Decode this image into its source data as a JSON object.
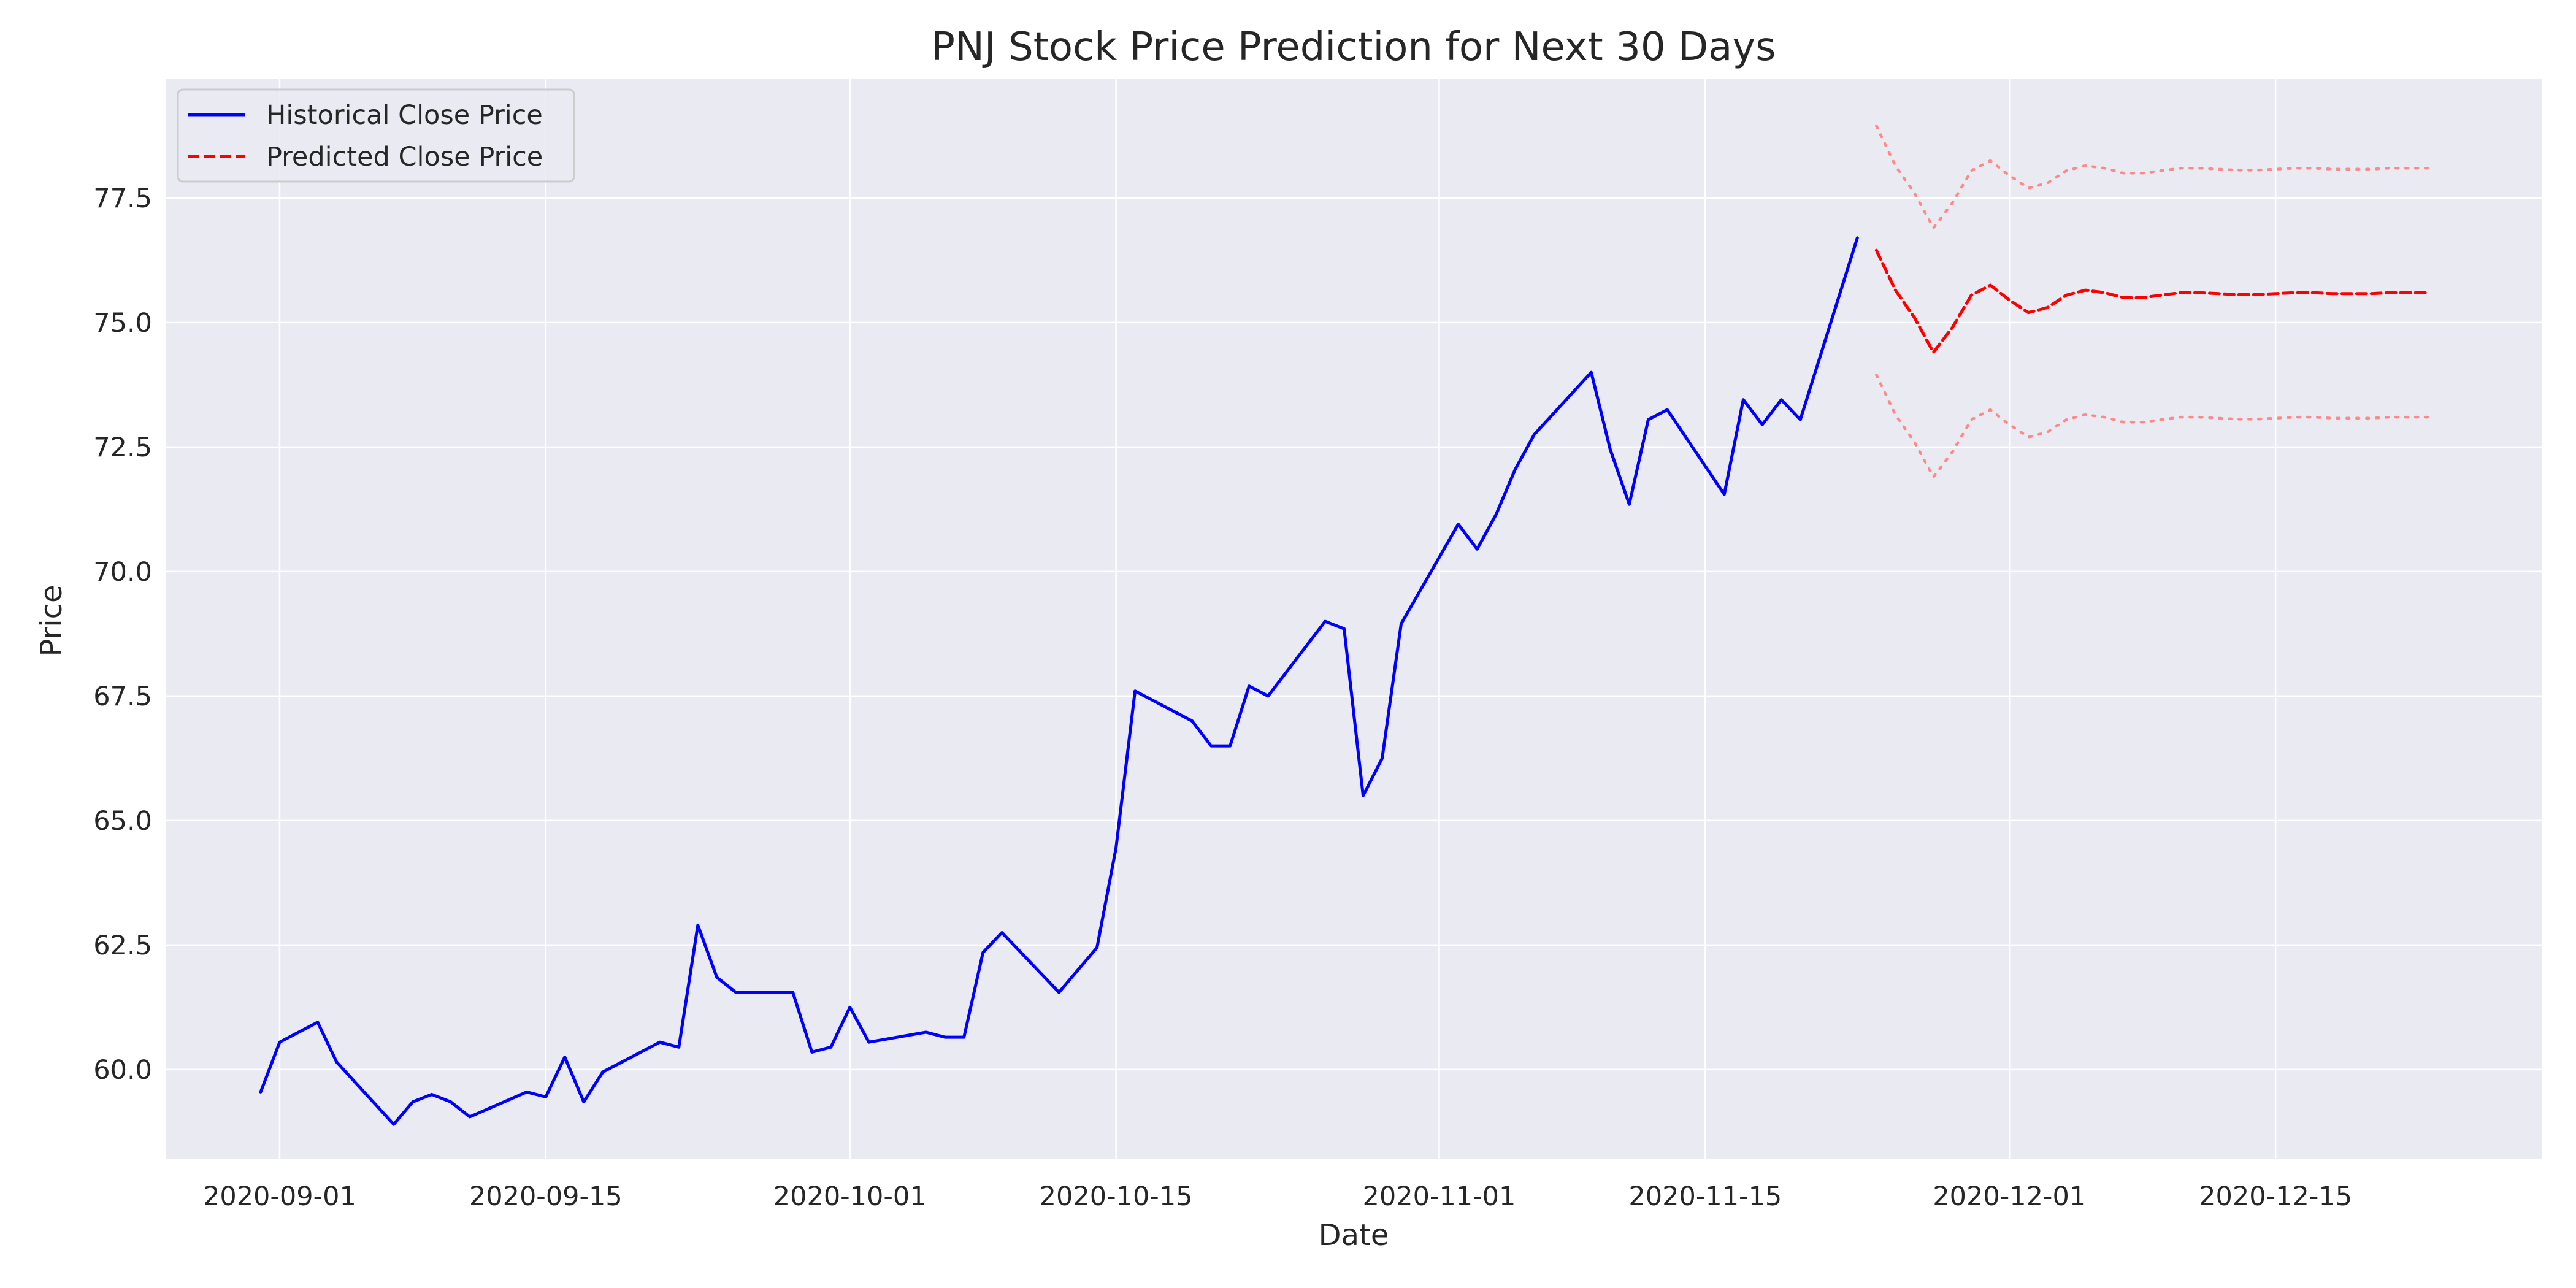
{
  "chart_data": {
    "type": "line",
    "title": "PNJ Stock Price Prediction for Next 30 Days",
    "xlabel": "Date",
    "ylabel": "Price",
    "xlim": [
      "2020-08-26",
      "2020-12-29"
    ],
    "ylim": [
      58.2,
      79.9
    ],
    "x_ticks": [
      "2020-09-01",
      "2020-09-15",
      "2020-10-01",
      "2020-10-15",
      "2020-11-01",
      "2020-11-15",
      "2020-12-01",
      "2020-12-15"
    ],
    "y_ticks": [
      "60.0",
      "62.5",
      "65.0",
      "67.5",
      "70.0",
      "72.5",
      "75.0",
      "77.5"
    ],
    "grid": true,
    "legend_position": "top-left",
    "colors": {
      "plot_background": "#eaeaf2",
      "historical": "#0000ff",
      "predicted": "#ff0000",
      "bounds": "#ff8080"
    },
    "series": [
      {
        "name": "Historical Close Price",
        "style": "solid",
        "x": [
          "2020-08-31",
          "2020-09-01",
          "2020-09-03",
          "2020-09-04",
          "2020-09-07",
          "2020-09-08",
          "2020-09-09",
          "2020-09-10",
          "2020-09-11",
          "2020-09-14",
          "2020-09-15",
          "2020-09-16",
          "2020-09-17",
          "2020-09-18",
          "2020-09-21",
          "2020-09-22",
          "2020-09-23",
          "2020-09-24",
          "2020-09-25",
          "2020-09-28",
          "2020-09-29",
          "2020-09-30",
          "2020-10-01",
          "2020-10-02",
          "2020-10-05",
          "2020-10-06",
          "2020-10-07",
          "2020-10-08",
          "2020-10-09",
          "2020-10-12",
          "2020-10-13",
          "2020-10-14",
          "2020-10-15",
          "2020-10-16",
          "2020-10-19",
          "2020-10-20",
          "2020-10-21",
          "2020-10-22",
          "2020-10-23",
          "2020-10-26",
          "2020-10-27",
          "2020-10-28",
          "2020-10-29",
          "2020-10-30",
          "2020-11-02",
          "2020-11-03",
          "2020-11-04",
          "2020-11-05",
          "2020-11-06",
          "2020-11-09",
          "2020-11-10",
          "2020-11-11",
          "2020-11-12",
          "2020-11-13",
          "2020-11-16",
          "2020-11-17",
          "2020-11-18",
          "2020-11-19",
          "2020-11-20",
          "2020-11-23"
        ],
        "y": [
          59.55,
          60.55,
          60.95,
          60.15,
          58.9,
          59.35,
          59.5,
          59.35,
          59.05,
          59.55,
          59.45,
          60.25,
          59.35,
          59.95,
          60.55,
          60.45,
          62.9,
          61.85,
          61.55,
          61.55,
          60.35,
          60.45,
          61.25,
          60.55,
          60.75,
          60.65,
          60.65,
          62.35,
          62.75,
          61.55,
          62.0,
          62.45,
          64.45,
          67.6,
          67.0,
          66.5,
          66.5,
          67.7,
          67.5,
          69.0,
          68.85,
          65.5,
          66.25,
          68.95,
          70.95,
          70.45,
          71.15,
          72.05,
          72.75,
          74.0,
          72.45,
          71.35,
          73.05,
          73.25,
          71.55,
          73.45,
          72.95,
          73.45,
          73.05,
          76.7
        ]
      },
      {
        "name": "Predicted Close Price",
        "style": "dashed",
        "x": [
          "2020-11-24",
          "2020-11-25",
          "2020-11-26",
          "2020-11-27",
          "2020-11-28",
          "2020-11-29",
          "2020-11-30",
          "2020-12-01",
          "2020-12-02",
          "2020-12-03",
          "2020-12-04",
          "2020-12-05",
          "2020-12-06",
          "2020-12-07",
          "2020-12-08",
          "2020-12-09",
          "2020-12-10",
          "2020-12-11",
          "2020-12-12",
          "2020-12-13",
          "2020-12-14",
          "2020-12-15",
          "2020-12-16",
          "2020-12-17",
          "2020-12-18",
          "2020-12-19",
          "2020-12-20",
          "2020-12-21",
          "2020-12-22",
          "2020-12-23"
        ],
        "y": [
          76.45,
          75.65,
          75.1,
          74.4,
          74.9,
          75.55,
          75.75,
          75.45,
          75.2,
          75.3,
          75.55,
          75.65,
          75.6,
          75.5,
          75.5,
          75.55,
          75.6,
          75.6,
          75.58,
          75.56,
          75.56,
          75.58,
          75.6,
          75.6,
          75.58,
          75.58,
          75.58,
          75.6,
          75.6,
          75.6
        ]
      },
      {
        "style": "dotted",
        "x": [
          "2020-11-24",
          "2020-11-25",
          "2020-11-26",
          "2020-11-27",
          "2020-11-28",
          "2020-11-29",
          "2020-11-30",
          "2020-12-01",
          "2020-12-02",
          "2020-12-03",
          "2020-12-04",
          "2020-12-05",
          "2020-12-06",
          "2020-12-07",
          "2020-12-08",
          "2020-12-09",
          "2020-12-10",
          "2020-12-11",
          "2020-12-12",
          "2020-12-13",
          "2020-12-14",
          "2020-12-15",
          "2020-12-16",
          "2020-12-17",
          "2020-12-18",
          "2020-12-19",
          "2020-12-20",
          "2020-12-21",
          "2020-12-22",
          "2020-12-23"
        ],
        "y": [
          78.95,
          78.15,
          77.6,
          76.9,
          77.4,
          78.05,
          78.25,
          77.95,
          77.7,
          77.8,
          78.05,
          78.15,
          78.1,
          78.0,
          78.0,
          78.05,
          78.1,
          78.1,
          78.08,
          78.06,
          78.06,
          78.08,
          78.1,
          78.1,
          78.08,
          78.08,
          78.08,
          78.1,
          78.1,
          78.1
        ]
      },
      {
        "style": "dotted",
        "x": [
          "2020-11-24",
          "2020-11-25",
          "2020-11-26",
          "2020-11-27",
          "2020-11-28",
          "2020-11-29",
          "2020-11-30",
          "2020-12-01",
          "2020-12-02",
          "2020-12-03",
          "2020-12-04",
          "2020-12-05",
          "2020-12-06",
          "2020-12-07",
          "2020-12-08",
          "2020-12-09",
          "2020-12-10",
          "2020-12-11",
          "2020-12-12",
          "2020-12-13",
          "2020-12-14",
          "2020-12-15",
          "2020-12-16",
          "2020-12-17",
          "2020-12-18",
          "2020-12-19",
          "2020-12-20",
          "2020-12-21",
          "2020-12-22",
          "2020-12-23"
        ],
        "y": [
          73.95,
          73.15,
          72.6,
          71.9,
          72.4,
          73.05,
          73.25,
          72.95,
          72.7,
          72.8,
          73.05,
          73.15,
          73.1,
          73.0,
          73.0,
          73.05,
          73.1,
          73.1,
          73.08,
          73.06,
          73.06,
          73.08,
          73.1,
          73.1,
          73.08,
          73.08,
          73.08,
          73.1,
          73.1,
          73.1
        ]
      }
    ]
  }
}
